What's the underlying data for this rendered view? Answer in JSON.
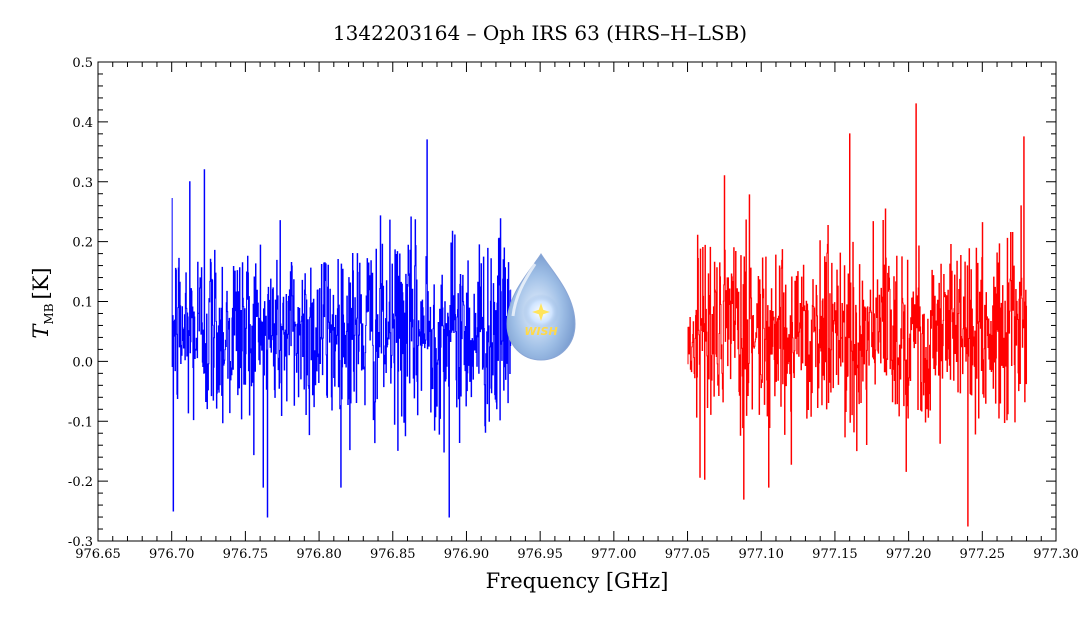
{
  "chart_data": {
    "type": "line",
    "title": "1342203164 – Oph IRS 63 (HRS–H–LSB)",
    "xlabel": "Frequency [GHz]",
    "ylabel_main": "T",
    "ylabel_sub": "MB",
    "ylabel_unit": "[K]",
    "xlim": [
      976.65,
      977.3
    ],
    "ylim": [
      -0.3,
      0.5
    ],
    "x_ticks": [
      "976.65",
      "976.70",
      "976.75",
      "976.80",
      "976.85",
      "976.90",
      "976.95",
      "977.00",
      "977.05",
      "977.10",
      "977.15",
      "977.20",
      "977.25",
      "977.30"
    ],
    "y_ticks": [
      "-0.3",
      "-0.2",
      "-0.1",
      "0.0",
      "0.1",
      "0.2",
      "0.3",
      "0.4",
      "0.5"
    ],
    "grid": false,
    "series": [
      {
        "color": "#0000ff",
        "x_range": [
          976.7,
          976.93
        ],
        "y_mean": 0.05,
        "y_noise_sigma": 0.08,
        "peaks": [
          [
            976.873,
            0.37
          ],
          [
            976.712,
            0.3
          ],
          [
            976.722,
            0.32
          ],
          [
            976.765,
            -0.26
          ],
          [
            976.888,
            -0.26
          ],
          [
            976.701,
            -0.25
          ]
        ]
      },
      {
        "color": "#ff0000",
        "x_range": [
          977.05,
          977.28
        ],
        "y_mean": 0.05,
        "y_noise_sigma": 0.08,
        "peaks": [
          [
            977.205,
            0.43
          ],
          [
            977.24,
            -0.275
          ],
          [
            977.16,
            0.38
          ],
          [
            977.278,
            0.375
          ],
          [
            977.088,
            -0.23
          ]
        ]
      }
    ],
    "logo": {
      "name": "wish-logo",
      "text": "WISH"
    }
  }
}
